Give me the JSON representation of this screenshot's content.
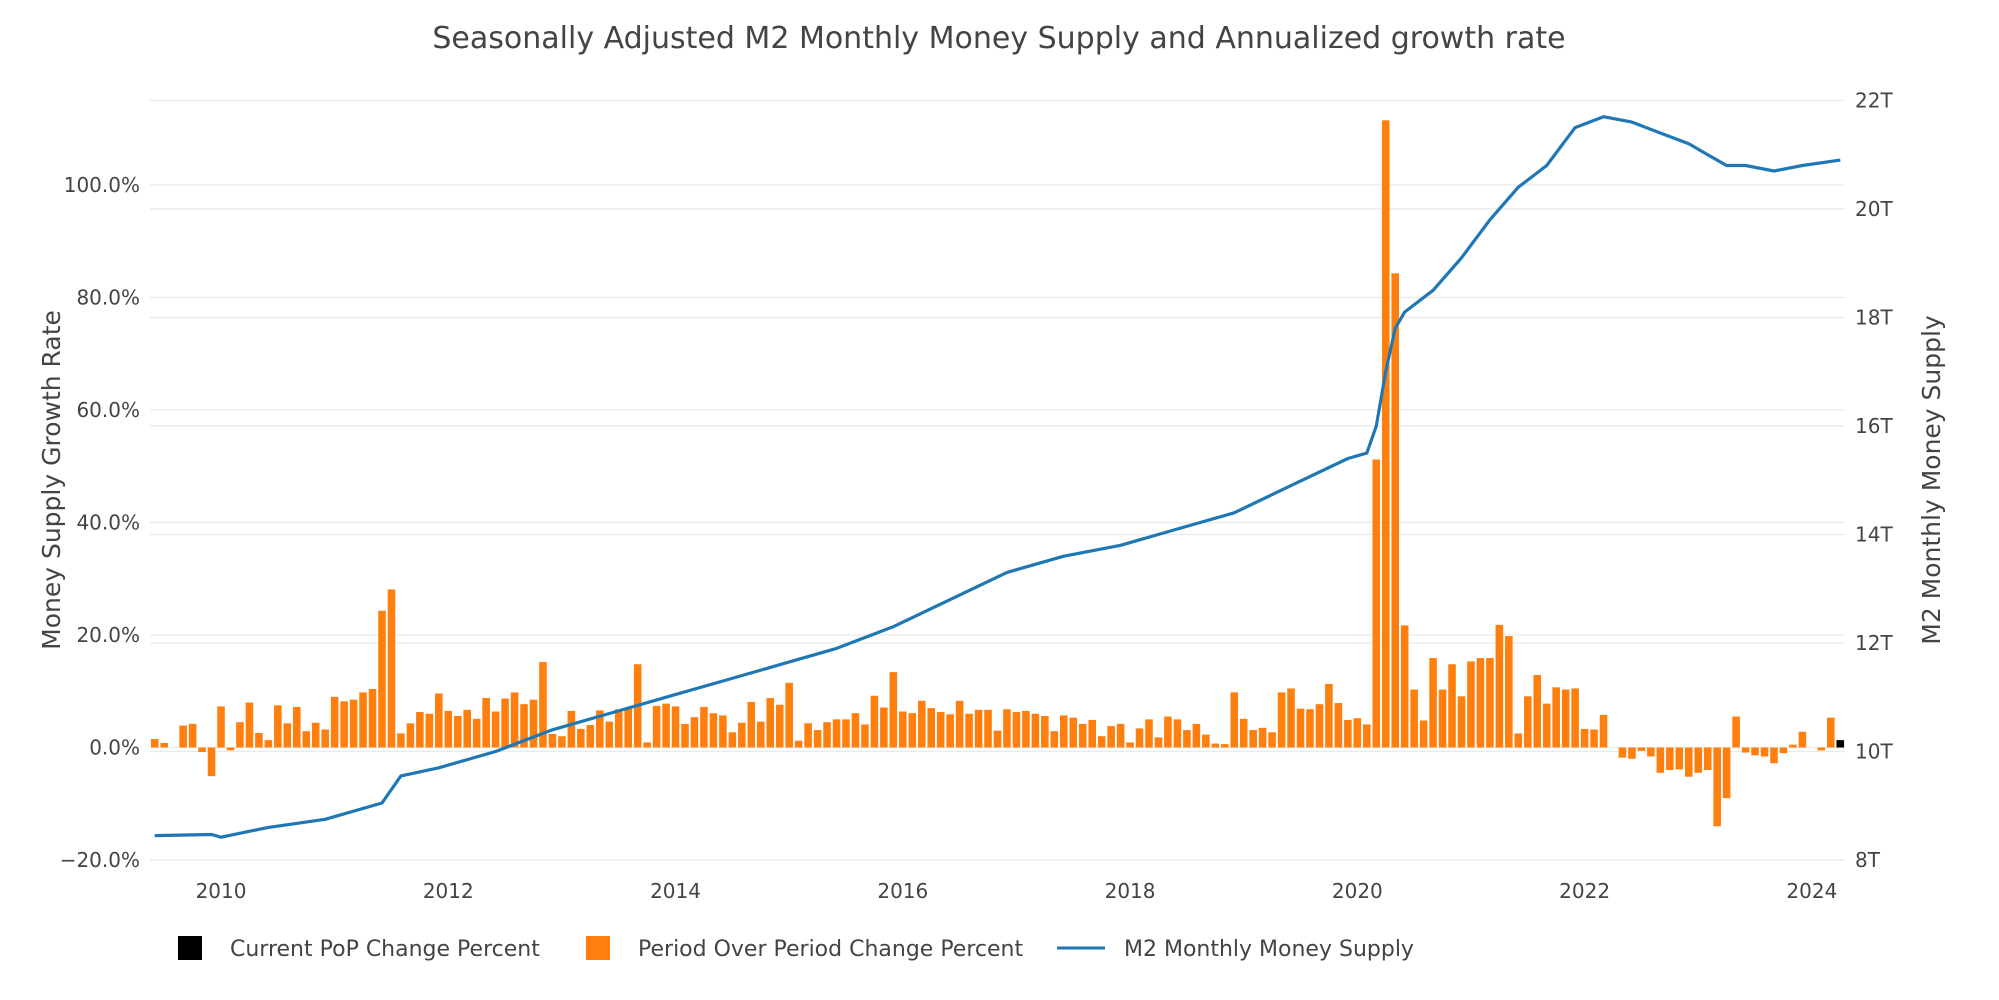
{
  "chart_data": {
    "type": "bar",
    "title": "Seasonally Adjusted M2 Monthly Money Supply and Annualized growth rate",
    "ylabel": "Money Supply Growth Rate",
    "y2label": "M2 Monthly Money Supply",
    "ylim": [
      -20,
      116
    ],
    "y2lim": [
      8,
      22.1
    ],
    "xlim": [
      "2009-06",
      "2024-04"
    ],
    "y_ticks": [
      -20,
      0,
      20,
      40,
      60,
      80,
      100
    ],
    "y_tick_labels": [
      "−20.0%",
      "0.0%",
      "20.0%",
      "40.0%",
      "60.0%",
      "80.0%",
      "100.0%"
    ],
    "y2_ticks": [
      8,
      10,
      12,
      14,
      16,
      18,
      20,
      22
    ],
    "y2_tick_labels": [
      "8T",
      "10T",
      "12T",
      "14T",
      "16T",
      "18T",
      "20T",
      "22T"
    ],
    "x_ticks": [
      2010,
      2012,
      2014,
      2016,
      2018,
      2020,
      2022,
      2024
    ],
    "x_tick_labels": [
      "2010",
      "2012",
      "2014",
      "2016",
      "2018",
      "2020",
      "2022",
      "2024"
    ],
    "grid": true,
    "legend_position": "bottom",
    "colors": {
      "current": "#000000",
      "pop": "#ff7f0e",
      "m2": "#1f77b4",
      "grid": "#e9e9e9",
      "text": "#444444"
    },
    "series": [
      {
        "name": "Period Over Period Change Percent",
        "type": "bar",
        "axis": "left",
        "start": "2009-06",
        "values": [
          1.5,
          0.8,
          0,
          3.9,
          4.2,
          -0.8,
          -5.1,
          7.3,
          -0.5,
          4.5,
          8.0,
          2.6,
          1.3,
          7.5,
          4.3,
          7.2,
          2.9,
          4.4,
          3.2,
          9.0,
          8.2,
          8.5,
          9.8,
          10.4,
          24.3,
          28.1,
          2.5,
          4.3,
          6.3,
          6.0,
          9.6,
          6.5,
          5.6,
          6.7,
          5.1,
          8.8,
          6.4,
          8.7,
          9.8,
          7.7,
          8.5,
          15.2,
          2.4,
          2.0,
          6.5,
          3.3,
          4.0,
          6.6,
          4.6,
          6.8,
          7.0,
          14.8,
          0.9,
          7.4,
          7.8,
          7.3,
          4.2,
          5.4,
          7.2,
          6.1,
          5.7,
          2.7,
          4.4,
          8.1,
          4.6,
          8.8,
          7.6,
          11.5,
          1.2,
          4.3,
          3.1,
          4.5,
          5.0,
          5.0,
          6.1,
          4.1,
          9.2,
          7.1,
          13.4,
          6.4,
          6.1,
          8.3,
          7.0,
          6.3,
          5.9,
          8.3,
          6.0,
          6.7,
          6.7,
          3.0,
          6.8,
          6.3,
          6.5,
          6.0,
          5.6,
          2.9,
          5.7,
          5.3,
          4.2,
          4.9,
          2.0,
          3.8,
          4.2,
          0.9,
          3.4,
          5.0,
          1.8,
          5.5,
          5.0,
          3.1,
          4.2,
          2.3,
          0.7,
          0.6,
          9.8,
          5.1,
          3.1,
          3.5,
          2.7,
          9.8,
          10.5,
          6.9,
          6.8,
          7.7,
          11.3,
          7.9,
          4.9,
          5.2,
          4.1,
          51.2,
          111.5,
          84.3,
          21.7,
          10.3,
          4.8,
          15.9,
          10.3,
          14.8,
          9.1,
          15.3,
          15.9,
          15.9,
          21.8,
          19.8,
          2.5,
          9.1,
          12.9,
          7.8,
          10.7,
          10.3,
          10.5,
          3.3,
          3.2,
          5.8,
          0,
          -1.8,
          -2.0,
          -0.6,
          -1.6,
          -4.5,
          -4.0,
          -3.9,
          -5.2,
          -4.5,
          -4.0,
          -14.0,
          -9.0,
          5.5,
          -0.9,
          -1.4,
          -1.6,
          -2.8,
          -1.0,
          0.5,
          2.8,
          0,
          -0.5,
          5.3,
          1.3
        ]
      },
      {
        "name": "Current PoP Change Percent",
        "type": "bar",
        "axis": "left",
        "x": "2024-04",
        "value": 1.3
      },
      {
        "name": "M2 Monthly Money Supply",
        "type": "line",
        "axis": "right",
        "points": [
          [
            "2009-06",
            8.45
          ],
          [
            "2009-12",
            8.47
          ],
          [
            "2010-01",
            8.42
          ],
          [
            "2010-06",
            8.6
          ],
          [
            "2010-12",
            8.75
          ],
          [
            "2011-06",
            9.05
          ],
          [
            "2011-08",
            9.55
          ],
          [
            "2011-12",
            9.7
          ],
          [
            "2012-06",
            10.0
          ],
          [
            "2012-12",
            10.4
          ],
          [
            "2013-06",
            10.7
          ],
          [
            "2013-12",
            11.0
          ],
          [
            "2014-06",
            11.3
          ],
          [
            "2014-12",
            11.6
          ],
          [
            "2015-06",
            11.9
          ],
          [
            "2015-12",
            12.3
          ],
          [
            "2016-06",
            12.8
          ],
          [
            "2016-12",
            13.3
          ],
          [
            "2017-06",
            13.6
          ],
          [
            "2017-12",
            13.8
          ],
          [
            "2018-06",
            14.1
          ],
          [
            "2018-12",
            14.4
          ],
          [
            "2019-06",
            14.9
          ],
          [
            "2019-12",
            15.4
          ],
          [
            "2020-02",
            15.5
          ],
          [
            "2020-03",
            16.0
          ],
          [
            "2020-04",
            17.0
          ],
          [
            "2020-05",
            17.8
          ],
          [
            "2020-06",
            18.1
          ],
          [
            "2020-09",
            18.5
          ],
          [
            "2020-12",
            19.1
          ],
          [
            "2021-03",
            19.8
          ],
          [
            "2021-06",
            20.4
          ],
          [
            "2021-09",
            20.8
          ],
          [
            "2021-12",
            21.5
          ],
          [
            "2022-03",
            21.7
          ],
          [
            "2022-06",
            21.6
          ],
          [
            "2022-09",
            21.4
          ],
          [
            "2022-12",
            21.2
          ],
          [
            "2023-02",
            21.0
          ],
          [
            "2023-04",
            20.8
          ],
          [
            "2023-06",
            20.8
          ],
          [
            "2023-09",
            20.7
          ],
          [
            "2023-12",
            20.8
          ],
          [
            "2024-04",
            20.9
          ]
        ]
      }
    ]
  }
}
